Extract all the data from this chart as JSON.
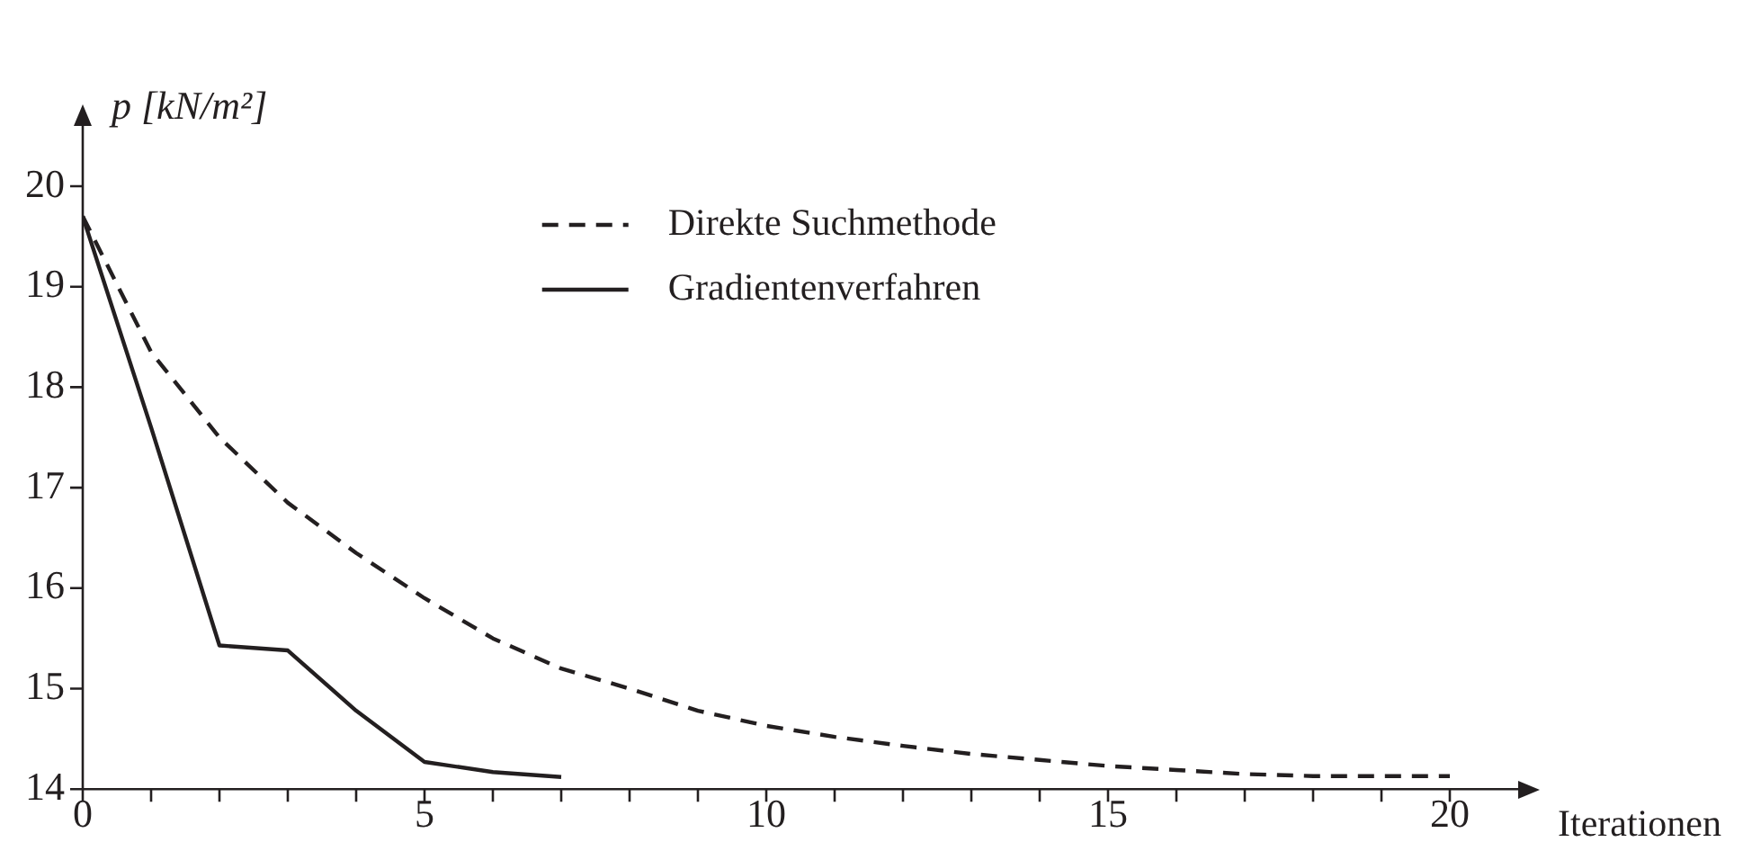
{
  "chart_data": {
    "type": "line",
    "ylabel": "p [kN/m²]",
    "xlabel": "Iterationen",
    "x": [
      0,
      1,
      2,
      3,
      4,
      5,
      6,
      7,
      8,
      9,
      10,
      11,
      12,
      13,
      14,
      15,
      16,
      17,
      18,
      19,
      20
    ],
    "series": [
      {
        "name": "Direkte Suchmethode",
        "color": "#231f20",
        "line_style": "dashed",
        "values": [
          19.7,
          18.35,
          17.5,
          16.85,
          16.35,
          15.9,
          15.5,
          15.2,
          15.0,
          14.78,
          14.63,
          14.52,
          14.43,
          14.35,
          14.29,
          14.23,
          14.19,
          14.15,
          14.13,
          14.13,
          14.13
        ]
      },
      {
        "name": "Gradientenverfahren",
        "color": "#231f20",
        "line_style": "solid",
        "x": [
          0,
          1,
          2,
          3,
          4,
          5,
          6,
          7
        ],
        "values": [
          19.7,
          17.6,
          15.43,
          15.38,
          14.78,
          14.27,
          14.17,
          14.12
        ]
      }
    ],
    "xlim": [
      0,
      21
    ],
    "ylim": [
      14,
      20.6
    ],
    "xticks": [
      0,
      {
        "value": 1,
        "label": null
      },
      {
        "value": 2,
        "label": null
      },
      {
        "value": 3,
        "label": null
      },
      {
        "value": 4,
        "label": null
      },
      5,
      {
        "value": 6,
        "label": null
      },
      {
        "value": 7,
        "label": null
      },
      {
        "value": 8,
        "label": null
      },
      {
        "value": 9,
        "label": null
      },
      10,
      {
        "value": 11,
        "label": null
      },
      {
        "value": 12,
        "label": null
      },
      {
        "value": 13,
        "label": null
      },
      {
        "value": 14,
        "label": null
      },
      15,
      {
        "value": 16,
        "label": null
      },
      {
        "value": 17,
        "label": null
      },
      {
        "value": 18,
        "label": null
      },
      {
        "value": 19,
        "label": null
      },
      20
    ],
    "yticks": [
      14,
      15,
      16,
      17,
      18,
      19,
      20
    ],
    "grid": false,
    "legend": "top",
    "marker": "none"
  }
}
